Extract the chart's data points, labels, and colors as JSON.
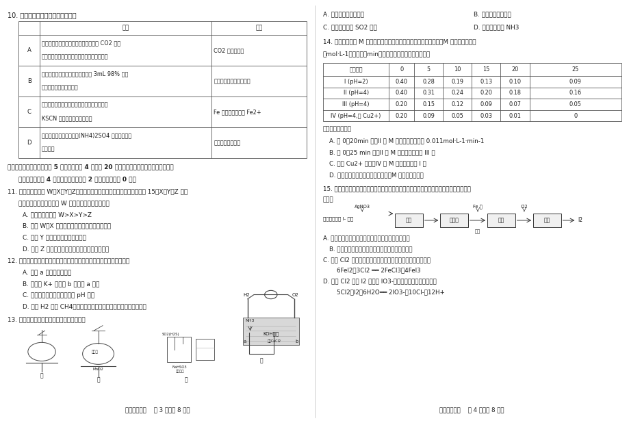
{
  "page_width": 9.2,
  "page_height": 6.18,
  "dpi": 100,
  "bg_color": "#ffffff",
  "text_color": "#1a1a1a",
  "border_color": "#555555",
  "left_page": {
    "q10_title": "10. 下列由实验得出的结论正确的是",
    "table_rows": [
      [
        "A",
        "将金属钠在燃烧匙中点燃迅速伸入集满 CO2 的集\n气瓶，产生大量的白烟，瓶内有黑色颗粒产生",
        "CO2 具有氧化性"
      ],
      [
        "B",
        "将打磨过的铝条放入试管，再加入 3mL 98% 浓硫\n酸，铝条表面无明显现象",
        "铝与浓硫酸常温下不反应"
      ],
      [
        "C",
        "将稀硝酸加入过量铁粉中，充分反应后再滴加\nKSCN 溶液，溶液不呈血红色",
        "Fe 被稀硝酸氧化为 Fe2+"
      ],
      [
        "D",
        "向鸡蛋白溶液中加入饱和(NH4)2SO4 溶液，有白色\n沉淀产生",
        "蛋白质发生了变性"
      ]
    ],
    "section2_line1": "二、不定项选择题：本题共 5 小题，每小题 4 分，共 20 分。每小题有一个或两个选项符合题",
    "section2_line2": "意，全部选对得 4 分，选对但不全的得 2 分，有选错的得 0 分。",
    "q11_lines": [
      "11. 已知短周期元素 W、X、Y、Z，原子序数依次增大，最外层电子数之和为 15。X、Y、Z 为同",
      "周期相邻元素，且均不与 W 同族。下列结论正确的是",
      "A. 原子半径大小为 W>X>Y>Z",
      "B. 元素 W、X 的简单离子具有相同的电子层结构",
      "C. 元素 Y 的主族序数与周期数相同",
      "D. 元素 Z 的最高价氧化物的水化物酸性强于碳酸"
    ],
    "q12_lines": [
      "12. 右图为氢氧燃料电池结构示意图，下列有关该电池的说法不正确的是",
      "A. 电极 a 上发生氧化反应",
      "B. 溶液中 K+ 由电极 b 向电极 a 移动",
      "C. 电池工作一段时间后溶液的 pH 减小",
      "D. 如把 H2 换成 CH4，产生相同的电量，消耗氧气的物质的量相同"
    ],
    "q13_line": "13. 下列实验操作正确且能达到实验目的的是",
    "footer": "高一化学试题    第 3 页（共 8 页）"
  },
  "right_page": {
    "q13_opts": [
      [
        "A. 用甲装置做喷泉实验",
        "B. 用乙装置制备氯气"
      ],
      [
        "C. 用丙装置提纯 SO2 气体",
        "D. 用丁装置干燥 NH3"
      ]
    ],
    "q14_line1": "14. 对水样中溶质 M 的分解速率影响因素进行研究。在相同温度下，M 的物质的量浓度",
    "q14_line2": "（mol·L-1）随时间（min）变化的有关实验数据见下表。",
    "t14_header": [
      "时间水样",
      "0",
      "5",
      "10",
      "15",
      "20",
      "25"
    ],
    "t14_rows": [
      [
        "I (pH=2)",
        "0.40",
        "0.28",
        "0.19",
        "0.13",
        "0.10",
        "0.09"
      ],
      [
        "II (pH=4)",
        "0.40",
        "0.31",
        "0.24",
        "0.20",
        "0.18",
        "0.16"
      ],
      [
        "III (pH=4)",
        "0.20",
        "0.15",
        "0.12",
        "0.09",
        "0.07",
        "0.05"
      ],
      [
        "IV (pH=4,含 Cu2+)",
        "0.20",
        "0.09",
        "0.05",
        "0.03",
        "0.01",
        "0"
      ]
    ],
    "q14_opts": [
      "下列说法正确的是",
      "A. 在 0～20min 内，II 中 M 的平均分解速率为 0.011mol·L-1·min-1",
      "B. 在 0～25 min 内，II 中 M 的分解百分率比 III 大",
      "C. 由于 Cu2+ 存在，IV 中 M 的分解速率比 I 快",
      "D. 其它条件相同时，水样酸性越强，M 的分解速率越快"
    ],
    "q15_line1": "15. 碘及其化合物广泛用于医药、染料等方面。一种制备方法如图所示，下列有关说法正确",
    "q15_line2": "的是：",
    "flow_left_label": "净化除氯后含 I- 海水",
    "flow_boxes": [
      "富集",
      "萃取液",
      "转化",
      "氧化"
    ],
    "flow_top_labels": [
      "AgNO3",
      "",
      "Fe 粉",
      "Cl2"
    ],
    "flow_bottom_labels": [
      "",
      "",
      "沉淀",
      ""
    ],
    "flow_right_label": "I2",
    "q15_opts": [
      "A. 整个流程中涉及的化学反应类型均为氧化还原反应",
      "B. 转化中生成的沉淀与硝酸反应的产物可循环使用",
      "C. 通入 Cl2 后，若氧化产物只有一种，反应的化学方程式为：",
      "    6FeI2＋3Cl2 ══ 2FeCl3＋4FeI3",
      "D. 过量 Cl2 会将 I2 氧化为 IO3-，其反应的离子方程式为：",
      "    5Cl2＋I2＋6H2O══ 2IO3-＋10Cl-＋12H+"
    ],
    "footer": "高一化学试题    第 4 页（共 8 页）"
  }
}
